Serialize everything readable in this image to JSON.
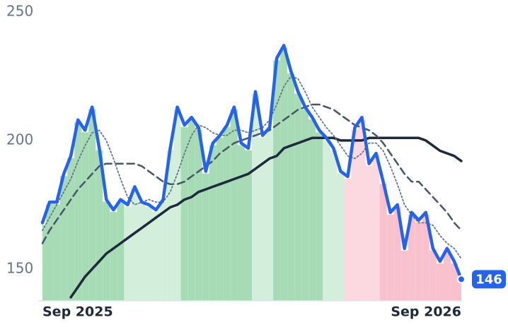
{
  "chart_data": {
    "type": "line",
    "categories": [
      "Sep 2025",
      null,
      null,
      null,
      null,
      null,
      null,
      null,
      null,
      null,
      null,
      null,
      null,
      null,
      null,
      null,
      null,
      null,
      null,
      null,
      null,
      null,
      null,
      null,
      null,
      null,
      null,
      null,
      null,
      null,
      null,
      null,
      null,
      null,
      null,
      null,
      null,
      null,
      null,
      null,
      null,
      null,
      null,
      null,
      null,
      null,
      null,
      null,
      null,
      null,
      null,
      null,
      null,
      null,
      null,
      null,
      null,
      null,
      null,
      "Sep 2026"
    ],
    "ylim": [
      137.6,
      250
    ],
    "yticks": [
      150,
      200,
      250
    ],
    "series": [
      {
        "color": "#2563eb",
        "line_style": "solid",
        "values": [
          168,
          176,
          176,
          187,
          194,
          208,
          204,
          213,
          197,
          177,
          173,
          177,
          175,
          182,
          176,
          175,
          173,
          177,
          197,
          213,
          206,
          209,
          205,
          188,
          199,
          202,
          206,
          213,
          199,
          197,
          219,
          202,
          205,
          232,
          237,
          227,
          219,
          213,
          209,
          204,
          201,
          197,
          188,
          186,
          205,
          209,
          191,
          195,
          184,
          172,
          175,
          158,
          172,
          169,
          172,
          158,
          153,
          158,
          153,
          146
        ],
        "area_colors": [
          "#a6dbb5",
          "#a6dbb5",
          "#a6dbb5",
          "#a6dbb5",
          "#a6dbb5",
          "#a6dbb5",
          "#a6dbb5",
          "#a6dbb5",
          "#a6dbb5",
          "#a6dbb5",
          "#a6dbb5",
          "#a6dbb5",
          "#d3eedb",
          "#d3eedb",
          "#d3eedb",
          "#d3eedb",
          "#d3eedb",
          "#d3eedb",
          "#d3eedb",
          "#d3eedb",
          "#a6dbb5",
          "#a6dbb5",
          "#a6dbb5",
          "#a6dbb5",
          "#a6dbb5",
          "#a6dbb5",
          "#a6dbb5",
          "#a6dbb5",
          "#a6dbb5",
          "#a6dbb5",
          "#d3eedb",
          "#d3eedb",
          "#d3eedb",
          "#a6dbb5",
          "#a6dbb5",
          "#a6dbb5",
          "#a6dbb5",
          "#a6dbb5",
          "#a6dbb5",
          "#a6dbb5",
          "#d3eedb",
          "#d3eedb",
          "#d3eedb",
          "#fcd9e1",
          "#fcd9e1",
          "#fcd9e1",
          "#fcd9e1",
          "#fcd9e1",
          "#f9c1cd",
          "#f9c1cd",
          "#f9c1cd",
          "#f9c1cd",
          "#f9c1cd",
          "#f9c1cd",
          "#f9c1cd",
          "#f9c1cd",
          "#f9c1cd",
          "#f9c1cd",
          "#f9c1cd",
          "#f9c1cd"
        ]
      },
      {
        "color": "#64748b",
        "line_style": "dotted",
        "values": [
          165,
          170,
          175,
          180,
          185,
          192,
          198,
          203,
          204,
          200,
          193,
          185,
          178,
          175,
          176,
          177,
          176,
          176,
          180,
          187,
          195,
          202,
          206,
          205,
          203,
          202,
          202,
          204,
          204,
          203,
          204,
          205,
          208,
          214,
          221,
          225,
          224,
          219,
          213,
          209,
          205,
          202,
          198,
          194,
          193,
          195,
          199,
          199,
          196,
          190,
          183,
          175,
          171,
          168,
          168,
          167,
          163,
          160,
          158,
          154
        ]
      },
      {
        "color": "#475569",
        "line_style": "dashed",
        "values": [
          160,
          165,
          169,
          173,
          177,
          181,
          184,
          187,
          190,
          191,
          191,
          191,
          191,
          191,
          190,
          188,
          186,
          184,
          183,
          183,
          184,
          186,
          188,
          190,
          192,
          195,
          197,
          199,
          200,
          201,
          202,
          203,
          204,
          206,
          208,
          210,
          212,
          213,
          214,
          214,
          213,
          212,
          210,
          208,
          206,
          205,
          204,
          202,
          199,
          195,
          191,
          187,
          184,
          184,
          181,
          178,
          175,
          172,
          168,
          165
        ]
      },
      {
        "color": "#1e293b",
        "line_style": "solid-thin",
        "values": [
          null,
          null,
          null,
          null,
          139,
          143,
          147,
          150,
          153,
          156,
          158,
          160,
          162,
          164,
          166,
          168,
          170,
          172,
          174,
          175,
          177,
          178,
          180,
          181,
          182,
          183,
          184,
          185,
          186,
          187,
          189,
          191,
          193,
          194,
          197,
          198,
          199,
          200,
          201,
          201,
          201,
          201,
          200,
          200,
          200,
          200,
          201,
          201,
          201,
          201,
          201,
          201,
          201,
          201,
          200,
          198,
          196,
          195,
          194,
          192
        ]
      }
    ]
  }
}
